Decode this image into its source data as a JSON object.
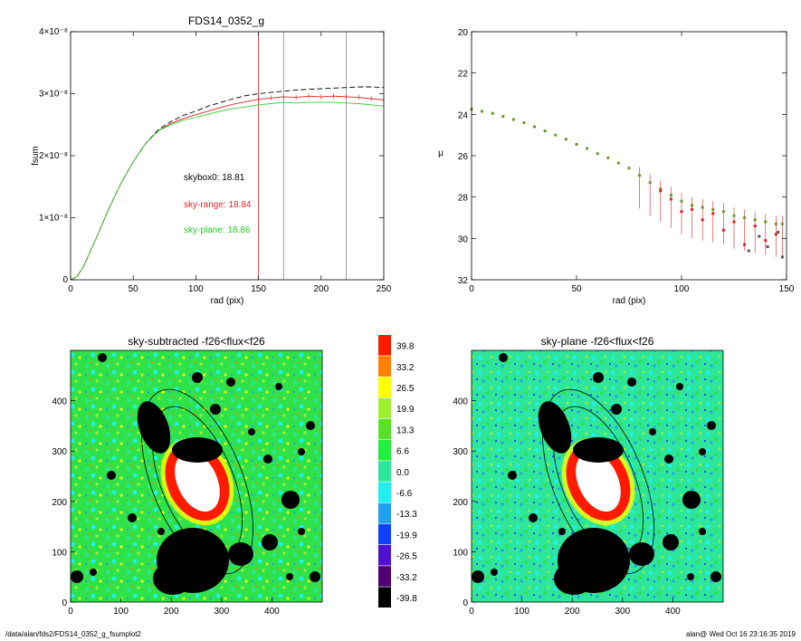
{
  "footer": {
    "left": "/data/alan/fds2/FDS14_0352_g_fsumplot2",
    "right": "alan@  Wed Oct 16 23:16:35 2019"
  },
  "chart_data": [
    {
      "type": "line",
      "title": "FDS14_0352_g",
      "xlabel": "rad (pix)",
      "ylabel": "fsum",
      "xlim": [
        0,
        250
      ],
      "ylim": [
        0,
        4e-08
      ],
      "xticks": [
        "0",
        "50",
        "100",
        "150",
        "200",
        "250"
      ],
      "yticks": [
        {
          "v": 0,
          "t": "0"
        },
        {
          "v": 1e-08,
          "t": "1×10⁻⁸"
        },
        {
          "v": 2e-08,
          "t": "2×10⁻⁸"
        },
        {
          "v": 3e-08,
          "t": "3×10⁻⁸"
        },
        {
          "v": 4e-08,
          "t": "4×10⁻⁸"
        }
      ],
      "vlines": [
        {
          "x": 150,
          "color": "#dd2222"
        },
        {
          "x": 170,
          "color": "#888888"
        },
        {
          "x": 220,
          "color": "#888888"
        }
      ],
      "annotations": [
        {
          "text": "skybox0: 18.81",
          "color": "#000000"
        },
        {
          "text": "sky-range: 18.84",
          "color": "#ee2222"
        },
        {
          "text": "sky-plane: 18.86",
          "color": "#22cc22"
        }
      ],
      "series": [
        {
          "style": "dashed",
          "color": "#000000",
          "x": [
            0,
            5,
            10,
            20,
            30,
            40,
            50,
            60,
            70,
            80,
            90,
            100,
            110,
            120,
            130,
            140,
            150,
            160,
            170,
            180,
            190,
            200,
            210,
            220,
            230,
            240,
            250
          ],
          "y": [
            0,
            5e-10,
            2e-09,
            6.5e-09,
            1.12e-08,
            1.55e-08,
            1.9e-08,
            2.2e-08,
            2.42e-08,
            2.55e-08,
            2.65e-08,
            2.72e-08,
            2.8e-08,
            2.86e-08,
            2.92e-08,
            2.97e-08,
            3e-08,
            3.02e-08,
            3.04e-08,
            3.06e-08,
            3.07e-08,
            3.08e-08,
            3.09e-08,
            3.1e-08,
            3.11e-08,
            3.11e-08,
            3.1e-08
          ]
        },
        {
          "style": "solid",
          "color": "#dd2222",
          "x": [
            0,
            5,
            10,
            20,
            30,
            40,
            50,
            60,
            70,
            80,
            90,
            100,
            110,
            120,
            130,
            140,
            150,
            160,
            170,
            180,
            190,
            200,
            210,
            220,
            230,
            240,
            250
          ],
          "y": [
            0,
            5e-10,
            2e-09,
            6.5e-09,
            1.12e-08,
            1.55e-08,
            1.9e-08,
            2.2e-08,
            2.4e-08,
            2.52e-08,
            2.6e-08,
            2.66e-08,
            2.72e-08,
            2.78e-08,
            2.83e-08,
            2.87e-08,
            2.91e-08,
            2.93e-08,
            2.95e-08,
            2.94e-08,
            2.96e-08,
            2.95e-08,
            2.96e-08,
            2.95e-08,
            2.94e-08,
            2.92e-08,
            2.9e-08
          ]
        },
        {
          "style": "solid",
          "color": "#33cc33",
          "x": [
            0,
            5,
            10,
            20,
            30,
            40,
            50,
            60,
            70,
            80,
            90,
            100,
            110,
            120,
            130,
            140,
            150,
            160,
            170,
            180,
            190,
            200,
            210,
            220,
            230,
            240,
            250
          ],
          "y": [
            0,
            5e-10,
            2e-09,
            6.5e-09,
            1.12e-08,
            1.55e-08,
            1.9e-08,
            2.2e-08,
            2.4e-08,
            2.5e-08,
            2.57e-08,
            2.62e-08,
            2.67e-08,
            2.72e-08,
            2.76e-08,
            2.79e-08,
            2.82e-08,
            2.84e-08,
            2.86e-08,
            2.85e-08,
            2.86e-08,
            2.86e-08,
            2.86e-08,
            2.85e-08,
            2.84e-08,
            2.82e-08,
            2.8e-08
          ]
        }
      ]
    },
    {
      "type": "scatter",
      "title": "",
      "xlabel": "rad (pix)",
      "ylabel": "μ",
      "xlim": [
        0,
        150
      ],
      "ylim": [
        32,
        20
      ],
      "xticks": [
        "0",
        "50",
        "100",
        "150"
      ],
      "yticks": [
        "20",
        "22",
        "24",
        "26",
        "28",
        "30",
        "32"
      ],
      "series": [
        {
          "color": "#6a9a2a",
          "x": [
            0,
            5,
            10,
            15,
            20,
            25,
            30,
            35,
            40,
            45,
            50,
            55,
            60,
            65,
            70,
            75,
            80,
            85,
            90,
            95,
            100,
            105,
            110,
            115,
            120,
            125,
            130,
            135,
            140,
            145,
            148
          ],
          "y": [
            23.75,
            23.85,
            23.95,
            24.1,
            24.25,
            24.4,
            24.6,
            24.8,
            25.0,
            25.2,
            25.45,
            25.65,
            25.9,
            26.1,
            26.35,
            26.6,
            26.95,
            27.3,
            27.6,
            27.9,
            28.2,
            28.4,
            28.5,
            28.6,
            28.7,
            28.9,
            29.0,
            29.1,
            29.2,
            29.3,
            29.3
          ]
        },
        {
          "color": "#dd2222",
          "x": [
            90,
            95,
            100,
            105,
            110,
            115,
            120,
            125,
            130,
            135,
            140,
            145
          ],
          "y": [
            27.7,
            28.1,
            28.7,
            28.6,
            29.1,
            28.8,
            29.6,
            29.2,
            30.3,
            29.4,
            30.1,
            29.8
          ]
        },
        {
          "color": "#555555",
          "x": [
            132,
            137,
            141,
            146,
            148
          ],
          "y": [
            30.6,
            29.9,
            30.4,
            29.7,
            30.9
          ]
        }
      ]
    },
    {
      "type": "heatmap",
      "title": "sky-subtracted -f26<flux<f26",
      "xlim": [
        0,
        500
      ],
      "ylim": [
        0,
        500
      ],
      "xticks": [
        "0",
        "100",
        "200",
        "300",
        "400"
      ],
      "yticks": [
        "0",
        "100",
        "200",
        "300",
        "400"
      ]
    },
    {
      "type": "heatmap",
      "title": "sky-plane -f26<flux<f26",
      "xlim": [
        0,
        500
      ],
      "ylim": [
        0,
        500
      ],
      "xticks": [
        "0",
        "100",
        "200",
        "300",
        "400"
      ],
      "yticks": [
        "0",
        "100",
        "200",
        "300",
        "400"
      ]
    },
    {
      "type": "colorbar",
      "levels": [
        {
          "label": "39.8",
          "color": "#ff1a00"
        },
        {
          "label": "33.2",
          "color": "#ff8000"
        },
        {
          "label": "26.5",
          "color": "#ffff00"
        },
        {
          "label": "19.9",
          "color": "#a0f030"
        },
        {
          "label": "13.3",
          "color": "#5ae02a"
        },
        {
          "label": "6.6",
          "color": "#1ef03c"
        },
        {
          "label": "0.0",
          "color": "#2ee69a"
        },
        {
          "label": "-6.6",
          "color": "#20f0f0"
        },
        {
          "label": "-13.3",
          "color": "#20a0f0"
        },
        {
          "label": "-19.9",
          "color": "#1040ff"
        },
        {
          "label": "-26.5",
          "color": "#5010d0"
        },
        {
          "label": "-33.2",
          "color": "#500070"
        },
        {
          "label": "-39.8",
          "color": "#000000"
        }
      ]
    }
  ]
}
